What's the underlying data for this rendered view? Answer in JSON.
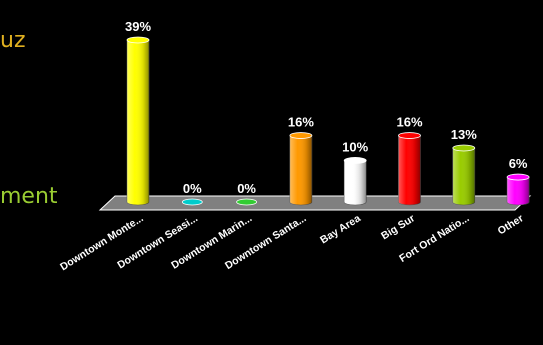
{
  "side_text": {
    "top": {
      "text": "uz",
      "color": "#e0b020"
    },
    "bottom": {
      "text": "ment",
      "color": "#9acd32"
    }
  },
  "chart_data": {
    "type": "bar",
    "title": "",
    "xlabel": "",
    "ylabel": "",
    "ylim": [
      0,
      39
    ],
    "categories": [
      "Downtown Monte...",
      "Downtown Seasi...",
      "Downtown Marin...",
      "Downtown Santa...",
      "Bay Area",
      "Big Sur",
      "Fort Ord Natio...",
      "Other"
    ],
    "values": [
      39,
      0,
      0,
      16,
      10,
      16,
      13,
      6
    ],
    "value_labels": [
      "39%",
      "0%",
      "0%",
      "16%",
      "10%",
      "16%",
      "13%",
      "6%"
    ],
    "colors": [
      "#ffff00",
      "#00cccc",
      "#33cc33",
      "#ff9900",
      "#ffffff",
      "#ff0000",
      "#99cc00",
      "#ff00ff"
    ],
    "floor_color": "#808080",
    "grid": false,
    "legend": "none"
  }
}
